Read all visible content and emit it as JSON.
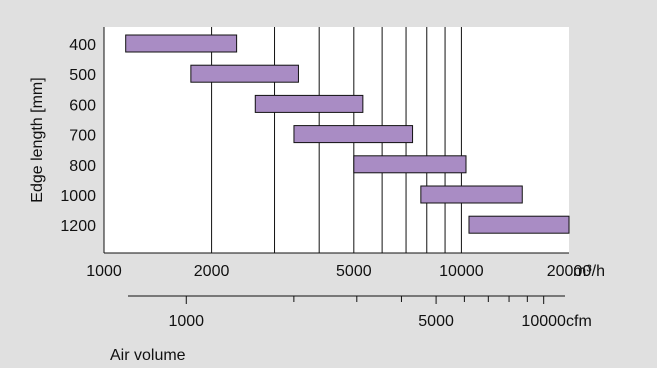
{
  "chart_data": {
    "type": "bar",
    "orientation": "horizontal-range",
    "ylabel": "Edge length [mm]",
    "xlabel": "Air volume",
    "x_scale": "log",
    "x_range": [
      1000,
      20000
    ],
    "x_ticks": [
      {
        "value": 1000,
        "label": "1000"
      },
      {
        "value": 2000,
        "label": "2000"
      },
      {
        "value": 5000,
        "label": "5000"
      },
      {
        "value": 10000,
        "label": "10000"
      },
      {
        "value": 20000,
        "label": "20000"
      }
    ],
    "x_unit_primary": "m³/h",
    "secondary_axis": {
      "unit": "cfm",
      "ticks": [
        {
          "value": 1000,
          "label": "1000"
        },
        {
          "value": 5000,
          "label": "5000"
        },
        {
          "value": 10000,
          "label": "10000"
        }
      ],
      "minor_ticks": [
        2000,
        3000,
        4000,
        6000,
        7000,
        8000,
        9000
      ]
    },
    "gridlines": [
      2000,
      3000,
      4000,
      5000,
      6000,
      7000,
      8000,
      9000,
      10000
    ],
    "grid": true,
    "bar_color": "#a98cc4",
    "categories": [
      "400",
      "500",
      "600",
      "700",
      "800",
      "1000",
      "1200"
    ],
    "ranges": [
      {
        "edge": "400",
        "min": 1150,
        "max": 2350
      },
      {
        "edge": "500",
        "min": 1750,
        "max": 3500
      },
      {
        "edge": "600",
        "min": 2650,
        "max": 5300
      },
      {
        "edge": "700",
        "min": 3400,
        "max": 7300
      },
      {
        "edge": "800",
        "min": 5000,
        "max": 10300
      },
      {
        "edge": "1000",
        "min": 7700,
        "max": 14800
      },
      {
        "edge": "1200",
        "min": 10500,
        "max": 20000
      }
    ]
  }
}
